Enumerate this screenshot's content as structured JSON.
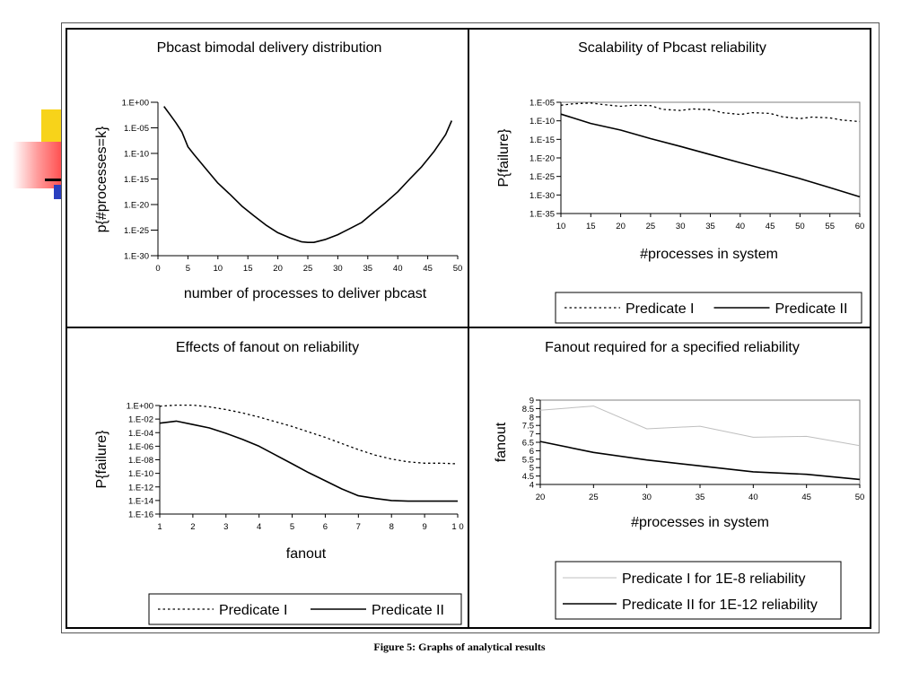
{
  "caption": "Figure 5: Graphs of analytical results",
  "colors": {
    "line": "#000000",
    "light_line": "#bfbfbf",
    "plot_border": "#808080"
  },
  "chart_data": [
    {
      "id": "bimodal",
      "type": "line",
      "title": "Pbcast bimodal delivery distribution",
      "xlabel": "number of processes to deliver pbcast",
      "ylabel": "p{#processes=k}",
      "xlim": [
        0,
        50
      ],
      "ylim": [
        -30,
        0
      ],
      "yscale": "log",
      "x_ticks": [
        "0",
        "5",
        "10",
        "15",
        "20",
        "25",
        "30",
        "35",
        "40",
        "45",
        "50"
      ],
      "y_ticks": [
        "1.E+00",
        "1.E-05",
        "1.E-10",
        "1.E-15",
        "1.E-20",
        "1.E-25",
        "1.E-30"
      ],
      "legend": "none",
      "series": [
        {
          "style": "solid",
          "x": [
            1,
            2,
            3,
            4,
            5,
            6,
            8,
            10,
            12,
            14,
            16,
            18,
            20,
            22,
            24,
            25,
            26,
            28,
            30,
            32,
            34,
            36,
            38,
            40,
            42,
            44,
            46,
            48,
            49
          ],
          "y": [
            -0.8,
            -2.4,
            -4.0,
            -5.8,
            -8.7,
            -10.2,
            -13.0,
            -15.8,
            -18.0,
            -20.3,
            -22.2,
            -24.0,
            -25.5,
            -26.5,
            -27.3,
            -27.4,
            -27.4,
            -26.8,
            -25.9,
            -24.7,
            -23.5,
            -21.5,
            -19.6,
            -17.5,
            -15.0,
            -12.6,
            -9.7,
            -6.3,
            -3.6
          ]
        }
      ]
    },
    {
      "id": "scalability",
      "type": "line",
      "title": "Scalability of Pbcast reliability",
      "xlabel": "#processes in system",
      "ylabel": "P{failure}",
      "xlim": [
        10,
        60
      ],
      "ylim": [
        -35,
        -5
      ],
      "yscale": "log",
      "x_ticks": [
        "10",
        "15",
        "20",
        "25",
        "30",
        "35",
        "40",
        "45",
        "50",
        "55",
        "60"
      ],
      "y_ticks": [
        "1.E-05",
        "1.E-10",
        "1.E-15",
        "1.E-20",
        "1.E-25",
        "1.E-30",
        "1.E-35"
      ],
      "legend": "bottom",
      "series": [
        {
          "name": "Predicate I",
          "style": "dotted",
          "x": [
            10,
            12,
            15,
            17,
            20,
            22,
            25,
            27,
            30,
            32,
            35,
            37,
            40,
            42,
            45,
            47,
            50,
            52,
            55,
            57,
            60
          ],
          "y": [
            -5.8,
            -5.4,
            -5.2,
            -5.6,
            -6.1,
            -5.8,
            -5.9,
            -6.9,
            -7.2,
            -6.8,
            -7.0,
            -7.8,
            -8.3,
            -7.8,
            -8.0,
            -8.9,
            -9.4,
            -9.0,
            -9.2,
            -9.8,
            -10.2
          ]
        },
        {
          "name": "Predicate II",
          "style": "solid",
          "x": [
            10,
            15,
            20,
            25,
            30,
            35,
            40,
            45,
            50,
            55,
            60
          ],
          "y": [
            -8.2,
            -10.7,
            -12.5,
            -14.8,
            -16.9,
            -19.1,
            -21.3,
            -23.4,
            -25.6,
            -28.0,
            -30.5
          ]
        }
      ]
    },
    {
      "id": "fanout-effects",
      "type": "line",
      "title": "Effects of fanout on reliability",
      "xlabel": "fanout",
      "ylabel": "P{failure}",
      "xlim": [
        1,
        10
      ],
      "ylim": [
        -16,
        0
      ],
      "yscale": "log",
      "x_ticks": [
        "1",
        "2",
        "3",
        "4",
        "5",
        "6",
        "7",
        "8",
        "9",
        "1 0"
      ],
      "y_ticks": [
        "1.E+00",
        "1.E-02",
        "1.E-04",
        "1.E-06",
        "1.E-08",
        "1.E-10",
        "1.E-12",
        "1.E-14",
        "1.E-16"
      ],
      "legend": "bottom",
      "series": [
        {
          "name": "Predicate I",
          "style": "dotted",
          "x": [
            1,
            1.5,
            2,
            2.5,
            3,
            3.5,
            4,
            4.5,
            5,
            5.5,
            6,
            6.5,
            7,
            7.5,
            8,
            8.5,
            9,
            9.5,
            10
          ],
          "y": [
            -0.1,
            0.05,
            0.05,
            -0.2,
            -0.6,
            -1.1,
            -1.7,
            -2.4,
            -3.1,
            -3.9,
            -4.7,
            -5.6,
            -6.5,
            -7.3,
            -7.9,
            -8.3,
            -8.5,
            -8.5,
            -8.6
          ]
        },
        {
          "name": "Predicate II",
          "style": "solid",
          "x": [
            1,
            1.5,
            2,
            2.5,
            3,
            3.5,
            4,
            4.5,
            5,
            5.5,
            6,
            6.5,
            7,
            7.5,
            8,
            8.5,
            9,
            9.5,
            10
          ],
          "y": [
            -2.6,
            -2.3,
            -2.8,
            -3.3,
            -4.1,
            -5.0,
            -6.0,
            -7.3,
            -8.6,
            -9.9,
            -11.1,
            -12.3,
            -13.3,
            -13.7,
            -14.0,
            -14.1,
            -14.1,
            -14.1,
            -14.1
          ]
        }
      ]
    },
    {
      "id": "fanout-required",
      "type": "line",
      "title": "Fanout required for a specified reliability",
      "xlabel": "#processes in system",
      "ylabel": "fanout",
      "xlim": [
        20,
        50
      ],
      "ylim": [
        4,
        9
      ],
      "yscale": "linear",
      "x_ticks": [
        "20",
        "25",
        "30",
        "35",
        "40",
        "45",
        "50"
      ],
      "y_ticks": [
        "9",
        "8.5",
        "8",
        "7.5",
        "7",
        "6.5",
        "6",
        "5.5",
        "5",
        "4.5",
        "4"
      ],
      "legend": "bottom",
      "series": [
        {
          "name": "Predicate I for 1E-8 reliability",
          "style": "light",
          "x": [
            20,
            25,
            30,
            35,
            40,
            45,
            50
          ],
          "y": [
            8.4,
            8.65,
            7.3,
            7.45,
            6.8,
            6.85,
            6.3
          ]
        },
        {
          "name": "Predicate II for 1E-12 reliability",
          "style": "solid",
          "x": [
            20,
            25,
            30,
            35,
            40,
            45,
            50
          ],
          "y": [
            6.55,
            5.9,
            5.45,
            5.1,
            4.75,
            4.6,
            4.3
          ]
        }
      ]
    }
  ]
}
